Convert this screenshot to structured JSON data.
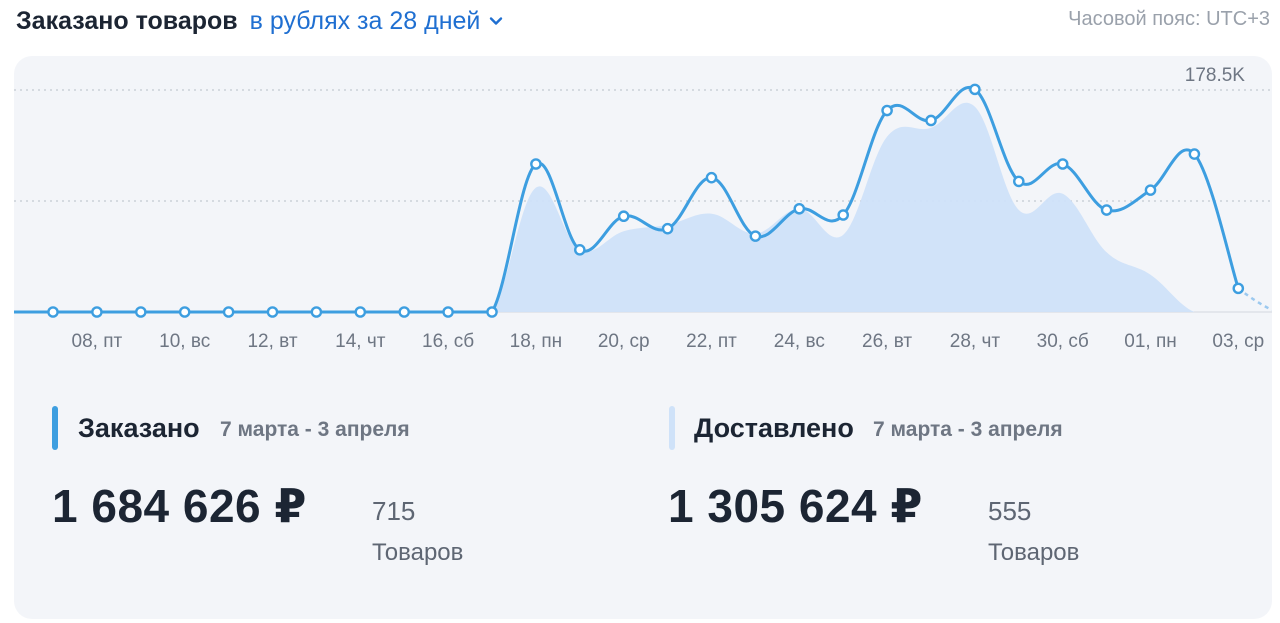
{
  "header": {
    "title": "Заказано товаров",
    "filter_label": "в рублях за 28 дней",
    "timezone": "Часовой пояс: UTC+3"
  },
  "chart_data": {
    "type": "area",
    "y_max_label": "178.5K",
    "ylim": [
      0,
      178500
    ],
    "grid": true,
    "x_ticks": [
      "08, пт",
      "10, вс",
      "12, вт",
      "14, чт",
      "16, сб",
      "18, пн",
      "20, ср",
      "22, пт",
      "24, вс",
      "26, вт",
      "28, чт",
      "30, сб",
      "01, пн",
      "03, ср"
    ],
    "series": [
      {
        "name": "Заказано",
        "color": "#3d9ee0",
        "values": [
          0,
          0,
          0,
          0,
          0,
          0,
          0,
          0,
          0,
          0,
          0,
          119000,
          50000,
          77000,
          67000,
          108000,
          61000,
          83000,
          78000,
          162000,
          154000,
          179000,
          105000,
          119000,
          82000,
          98000,
          127000,
          19000
        ]
      },
      {
        "name": "Доставлено",
        "color": "#cfe2f9",
        "values": [
          0,
          0,
          0,
          0,
          0,
          0,
          0,
          0,
          0,
          0,
          0,
          100000,
          50000,
          65000,
          70000,
          79000,
          63000,
          83000,
          62000,
          141000,
          148000,
          165000,
          82000,
          95000,
          48000,
          30000,
          0,
          0
        ]
      }
    ]
  },
  "stats": {
    "ordered": {
      "name": "Заказано",
      "period": "7 марта - 3 апреля",
      "sum": "1 684 626 ₽",
      "count": "715",
      "unit": "Товаров",
      "color": "#3d9ee0"
    },
    "delivered": {
      "name": "Доставлено",
      "period": "7 марта - 3 апреля",
      "sum": "1 305 624 ₽",
      "count": "555",
      "unit": "Товаров",
      "color": "#cfe2f9"
    }
  }
}
